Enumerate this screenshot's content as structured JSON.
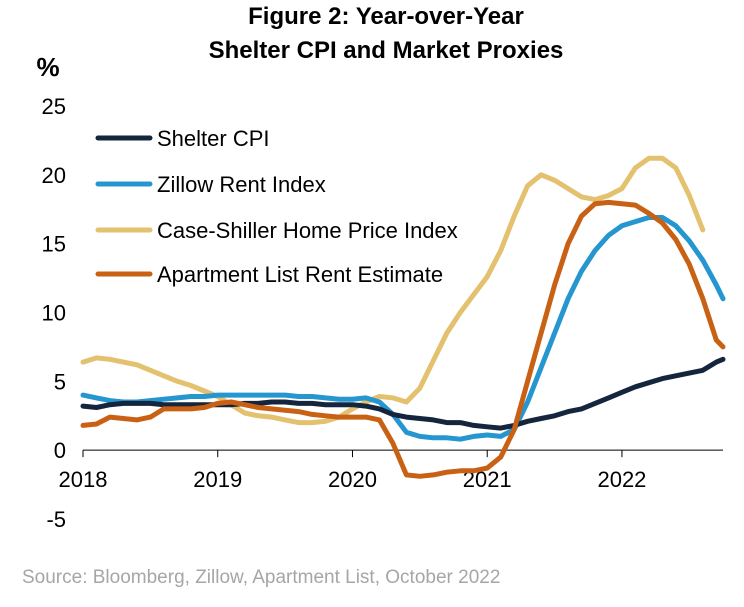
{
  "chart_data": {
    "type": "line",
    "title_line1": "Figure 2: Year-over-Year",
    "title_line2": "Shelter CPI and Market Proxies",
    "ylabel": "%",
    "ylim": [
      -5,
      25
    ],
    "yticks": [
      25,
      20,
      15,
      10,
      5,
      0,
      -5
    ],
    "xlim": [
      2018.0,
      2022.75
    ],
    "xticks": [
      2018,
      2019,
      2020,
      2021,
      2022
    ],
    "grid": false,
    "legend_position": "top-left",
    "source": "Source: Bloomberg, Zillow, Apartment List, October 2022",
    "series": [
      {
        "name": "Shelter CPI",
        "color": "#14253d",
        "points": [
          [
            2018.0,
            3.2
          ],
          [
            2018.1,
            3.1
          ],
          [
            2018.2,
            3.3
          ],
          [
            2018.3,
            3.4
          ],
          [
            2018.4,
            3.4
          ],
          [
            2018.5,
            3.4
          ],
          [
            2018.6,
            3.3
          ],
          [
            2018.7,
            3.3
          ],
          [
            2018.8,
            3.3
          ],
          [
            2018.9,
            3.3
          ],
          [
            2019.0,
            3.3
          ],
          [
            2019.1,
            3.3
          ],
          [
            2019.2,
            3.4
          ],
          [
            2019.3,
            3.4
          ],
          [
            2019.4,
            3.5
          ],
          [
            2019.5,
            3.5
          ],
          [
            2019.6,
            3.4
          ],
          [
            2019.7,
            3.4
          ],
          [
            2019.8,
            3.3
          ],
          [
            2019.9,
            3.3
          ],
          [
            2020.0,
            3.3
          ],
          [
            2020.1,
            3.2
          ],
          [
            2020.2,
            3.0
          ],
          [
            2020.3,
            2.6
          ],
          [
            2020.4,
            2.4
          ],
          [
            2020.5,
            2.3
          ],
          [
            2020.6,
            2.2
          ],
          [
            2020.7,
            2.0
          ],
          [
            2020.8,
            2.0
          ],
          [
            2020.9,
            1.8
          ],
          [
            2021.0,
            1.7
          ],
          [
            2021.1,
            1.6
          ],
          [
            2021.2,
            1.8
          ],
          [
            2021.3,
            2.1
          ],
          [
            2021.4,
            2.3
          ],
          [
            2021.5,
            2.5
          ],
          [
            2021.6,
            2.8
          ],
          [
            2021.7,
            3.0
          ],
          [
            2021.8,
            3.4
          ],
          [
            2021.9,
            3.8
          ],
          [
            2022.0,
            4.2
          ],
          [
            2022.1,
            4.6
          ],
          [
            2022.2,
            4.9
          ],
          [
            2022.3,
            5.2
          ],
          [
            2022.4,
            5.4
          ],
          [
            2022.5,
            5.6
          ],
          [
            2022.6,
            5.8
          ],
          [
            2022.7,
            6.4
          ],
          [
            2022.75,
            6.6
          ]
        ]
      },
      {
        "name": "Zillow Rent Index",
        "color": "#2596cf",
        "points": [
          [
            2018.0,
            4.0
          ],
          [
            2018.1,
            3.8
          ],
          [
            2018.2,
            3.6
          ],
          [
            2018.3,
            3.5
          ],
          [
            2018.4,
            3.5
          ],
          [
            2018.5,
            3.6
          ],
          [
            2018.6,
            3.7
          ],
          [
            2018.7,
            3.8
          ],
          [
            2018.8,
            3.9
          ],
          [
            2018.9,
            3.9
          ],
          [
            2019.0,
            4.0
          ],
          [
            2019.1,
            4.0
          ],
          [
            2019.2,
            4.0
          ],
          [
            2019.3,
            4.0
          ],
          [
            2019.4,
            4.0
          ],
          [
            2019.5,
            4.0
          ],
          [
            2019.6,
            3.9
          ],
          [
            2019.7,
            3.9
          ],
          [
            2019.8,
            3.8
          ],
          [
            2019.9,
            3.7
          ],
          [
            2020.0,
            3.7
          ],
          [
            2020.1,
            3.8
          ],
          [
            2020.2,
            3.5
          ],
          [
            2020.3,
            2.6
          ],
          [
            2020.4,
            1.3
          ],
          [
            2020.5,
            1.0
          ],
          [
            2020.6,
            0.9
          ],
          [
            2020.7,
            0.9
          ],
          [
            2020.8,
            0.8
          ],
          [
            2020.9,
            1.0
          ],
          [
            2021.0,
            1.1
          ],
          [
            2021.1,
            1.0
          ],
          [
            2021.2,
            1.5
          ],
          [
            2021.3,
            3.5
          ],
          [
            2021.4,
            6.0
          ],
          [
            2021.5,
            8.5
          ],
          [
            2021.6,
            11.0
          ],
          [
            2021.7,
            13.0
          ],
          [
            2021.8,
            14.5
          ],
          [
            2021.9,
            15.6
          ],
          [
            2022.0,
            16.3
          ],
          [
            2022.1,
            16.6
          ],
          [
            2022.2,
            16.9
          ],
          [
            2022.3,
            16.9
          ],
          [
            2022.4,
            16.3
          ],
          [
            2022.5,
            15.2
          ],
          [
            2022.6,
            13.8
          ],
          [
            2022.7,
            12.0
          ],
          [
            2022.75,
            11.0
          ]
        ]
      },
      {
        "name": "Case-Shiller Home Price Index",
        "color": "#e3c16f",
        "points": [
          [
            2018.0,
            6.4
          ],
          [
            2018.1,
            6.7
          ],
          [
            2018.2,
            6.6
          ],
          [
            2018.3,
            6.4
          ],
          [
            2018.4,
            6.2
          ],
          [
            2018.5,
            5.8
          ],
          [
            2018.6,
            5.4
          ],
          [
            2018.7,
            5.0
          ],
          [
            2018.8,
            4.7
          ],
          [
            2018.9,
            4.3
          ],
          [
            2019.0,
            3.9
          ],
          [
            2019.1,
            3.3
          ],
          [
            2019.2,
            2.7
          ],
          [
            2019.3,
            2.5
          ],
          [
            2019.4,
            2.4
          ],
          [
            2019.5,
            2.2
          ],
          [
            2019.6,
            2.0
          ],
          [
            2019.7,
            2.0
          ],
          [
            2019.8,
            2.1
          ],
          [
            2019.9,
            2.4
          ],
          [
            2020.0,
            3.0
          ],
          [
            2020.1,
            3.5
          ],
          [
            2020.2,
            3.9
          ],
          [
            2020.3,
            3.8
          ],
          [
            2020.4,
            3.5
          ],
          [
            2020.5,
            4.5
          ],
          [
            2020.6,
            6.5
          ],
          [
            2020.7,
            8.5
          ],
          [
            2020.8,
            10.0
          ],
          [
            2020.9,
            11.3
          ],
          [
            2021.0,
            12.6
          ],
          [
            2021.1,
            14.5
          ],
          [
            2021.2,
            17.0
          ],
          [
            2021.3,
            19.2
          ],
          [
            2021.4,
            20.0
          ],
          [
            2021.5,
            19.6
          ],
          [
            2021.6,
            19.0
          ],
          [
            2021.7,
            18.4
          ],
          [
            2021.8,
            18.2
          ],
          [
            2021.9,
            18.5
          ],
          [
            2022.0,
            19.0
          ],
          [
            2022.1,
            20.5
          ],
          [
            2022.2,
            21.2
          ],
          [
            2022.3,
            21.2
          ],
          [
            2022.4,
            20.5
          ],
          [
            2022.5,
            18.5
          ],
          [
            2022.6,
            16.0
          ]
        ]
      },
      {
        "name": "Apartment List Rent Estimate",
        "color": "#c96115",
        "points": [
          [
            2018.0,
            1.8
          ],
          [
            2018.1,
            1.9
          ],
          [
            2018.2,
            2.4
          ],
          [
            2018.3,
            2.3
          ],
          [
            2018.4,
            2.2
          ],
          [
            2018.5,
            2.4
          ],
          [
            2018.6,
            3.0
          ],
          [
            2018.7,
            3.0
          ],
          [
            2018.8,
            3.0
          ],
          [
            2018.9,
            3.1
          ],
          [
            2019.0,
            3.4
          ],
          [
            2019.1,
            3.5
          ],
          [
            2019.2,
            3.3
          ],
          [
            2019.3,
            3.1
          ],
          [
            2019.4,
            3.0
          ],
          [
            2019.5,
            2.9
          ],
          [
            2019.6,
            2.8
          ],
          [
            2019.7,
            2.6
          ],
          [
            2019.8,
            2.5
          ],
          [
            2019.9,
            2.4
          ],
          [
            2020.0,
            2.4
          ],
          [
            2020.1,
            2.4
          ],
          [
            2020.2,
            2.2
          ],
          [
            2020.3,
            0.5
          ],
          [
            2020.4,
            -1.8
          ],
          [
            2020.5,
            -1.9
          ],
          [
            2020.6,
            -1.8
          ],
          [
            2020.7,
            -1.6
          ],
          [
            2020.8,
            -1.5
          ],
          [
            2020.9,
            -1.5
          ],
          [
            2021.0,
            -1.3
          ],
          [
            2021.1,
            -0.5
          ],
          [
            2021.2,
            1.5
          ],
          [
            2021.3,
            5.0
          ],
          [
            2021.4,
            8.5
          ],
          [
            2021.5,
            12.0
          ],
          [
            2021.6,
            15.0
          ],
          [
            2021.7,
            17.0
          ],
          [
            2021.8,
            17.9
          ],
          [
            2021.9,
            18.0
          ],
          [
            2022.0,
            17.9
          ],
          [
            2022.1,
            17.8
          ],
          [
            2022.2,
            17.2
          ],
          [
            2022.3,
            16.5
          ],
          [
            2022.4,
            15.3
          ],
          [
            2022.5,
            13.5
          ],
          [
            2022.6,
            11.0
          ],
          [
            2022.7,
            8.0
          ],
          [
            2022.75,
            7.5
          ]
        ]
      }
    ]
  }
}
